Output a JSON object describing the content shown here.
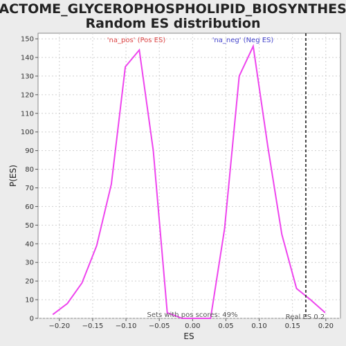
{
  "chart_data": {
    "type": "line",
    "title_line1": "REACTOME_GLYCEROPHOSPHOLIPID_BIOSYNTHESIS:",
    "title_line2": "Random ES distribution",
    "xlabel": "ES",
    "ylabel": "P(ES)",
    "xlim": [
      -0.232,
      0.222
    ],
    "ylim": [
      0,
      153
    ],
    "x_ticks": [
      -0.2,
      -0.15,
      -0.1,
      -0.05,
      0.0,
      0.05,
      0.1,
      0.15,
      0.2
    ],
    "x_tick_labels": [
      "−0.20",
      "−0.15",
      "−0.10",
      "−0.05",
      "0.00",
      "0.05",
      "0.10",
      "0.15",
      "0.20"
    ],
    "y_ticks": [
      0,
      10,
      20,
      30,
      40,
      50,
      60,
      70,
      80,
      90,
      100,
      110,
      120,
      130,
      140,
      150
    ],
    "y_tick_labels": [
      "0",
      "10",
      "20",
      "30",
      "40",
      "50",
      "60",
      "70",
      "80",
      "90",
      "100",
      "110",
      "120",
      "130",
      "140",
      "150"
    ],
    "grid": true,
    "line_color": "#ee44ee",
    "series": [
      {
        "x": [
          -0.21,
          -0.188,
          -0.166,
          -0.144,
          -0.122,
          -0.101,
          -0.08,
          -0.059,
          -0.038,
          -0.016,
          0.005,
          0.027,
          0.048,
          0.07,
          0.091,
          0.113,
          0.134,
          0.156,
          0.177,
          0.199
        ],
        "y": [
          2,
          8,
          19,
          39,
          72,
          135,
          144,
          90,
          3,
          0,
          0,
          0,
          48,
          130,
          146,
          92,
          45,
          16,
          10,
          3
        ]
      }
    ],
    "real_es": 0.17,
    "annotations": {
      "pos_label": "'na_pos' (Pos ES)",
      "neg_label": "'na_neg' (Neg ES)",
      "sets_label": "Sets with pos scores: 49%",
      "real_es_label": "Real ES 0.2"
    },
    "colors": {
      "pos_label": "#dd4444",
      "neg_label": "#4444cc",
      "sets_label": "#555555",
      "real_es_line": "#444444",
      "grid": "#cfcfcf",
      "plot_bg": "#ffffff"
    }
  }
}
